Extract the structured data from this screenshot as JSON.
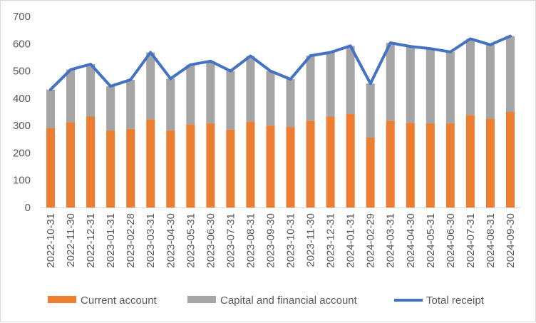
{
  "chart_data": {
    "type": "bar+line",
    "title": "",
    "xlabel": "",
    "ylabel": "",
    "ylim": [
      0,
      700
    ],
    "yticks": [
      0,
      100,
      200,
      300,
      400,
      500,
      600,
      700
    ],
    "grid": false,
    "legend_position": "bottom",
    "categories": [
      "2022-10-31",
      "2022-11-30",
      "2022-12-31",
      "2023-01-31",
      "2023-02-28",
      "2023-03-31",
      "2023-04-30",
      "2023-05-31",
      "2023-06-30",
      "2023-07-31",
      "2023-08-31",
      "2023-09-30",
      "2023-10-31",
      "2023-11-30",
      "2023-12-31",
      "2024-01-31",
      "2024-02-29",
      "2024-03-31",
      "2024-04-30",
      "2024-05-31",
      "2024-06-30",
      "2024-07-31",
      "2024-08-31",
      "2024-09-30"
    ],
    "series": [
      {
        "name": "Current account",
        "kind": "stacked-bar",
        "color": "#ED7D31",
        "values": [
          292,
          312,
          333,
          282,
          288,
          323,
          282,
          305,
          308,
          285,
          315,
          300,
          295,
          318,
          333,
          342,
          256,
          318,
          310,
          308,
          308,
          338,
          326,
          350
        ]
      },
      {
        "name": "Capital and financial account",
        "kind": "stacked-bar",
        "color": "#A5A5A5",
        "values": [
          140,
          193,
          192,
          162,
          180,
          245,
          190,
          218,
          228,
          215,
          240,
          200,
          175,
          238,
          235,
          250,
          198,
          285,
          280,
          274,
          262,
          280,
          270,
          278
        ]
      },
      {
        "name": "Total receipt",
        "kind": "line",
        "color": "#4472C4",
        "values": [
          432,
          505,
          525,
          444,
          468,
          568,
          472,
          523,
          536,
          500,
          555,
          500,
          470,
          556,
          568,
          592,
          454,
          603,
          590,
          582,
          570,
          618,
          596,
          628
        ]
      }
    ]
  }
}
